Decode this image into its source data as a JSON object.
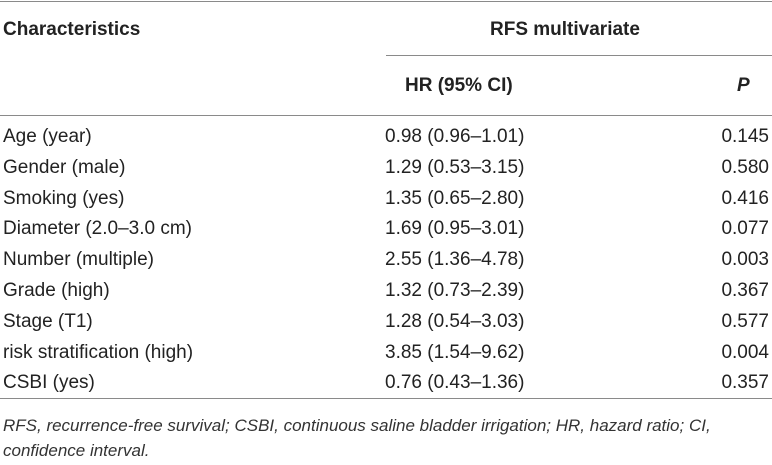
{
  "table": {
    "headers": {
      "characteristics": "Characteristics",
      "group": "RFS multivariate",
      "hr": "HR (95% CI)",
      "p": "P"
    },
    "rows": [
      {
        "characteristic": "Age (year)",
        "hr": "0.98 (0.96–1.01)",
        "p": "0.145"
      },
      {
        "characteristic": "Gender (male)",
        "hr": "1.29 (0.53–3.15)",
        "p": "0.580"
      },
      {
        "characteristic": "Smoking (yes)",
        "hr": "1.35 (0.65–2.80)",
        "p": "0.416"
      },
      {
        "characteristic": "Diameter (2.0–3.0 cm)",
        "hr": "1.69 (0.95–3.01)",
        "p": "0.077"
      },
      {
        "characteristic": "Number (multiple)",
        "hr": "2.55 (1.36–4.78)",
        "p": "0.003"
      },
      {
        "characteristic": "Grade (high)",
        "hr": "1.32 (0.73–2.39)",
        "p": "0.367"
      },
      {
        "characteristic": "Stage (T1)",
        "hr": "1.28 (0.54–3.03)",
        "p": "0.577"
      },
      {
        "characteristic": "risk stratification (high)",
        "hr": "3.85 (1.54–9.62)",
        "p": "0.004"
      },
      {
        "characteristic": "CSBI (yes)",
        "hr": "0.76 (0.43–1.36)",
        "p": "0.357"
      }
    ]
  },
  "footnote": "RFS, recurrence-free survival; CSBI, continuous saline bladder irrigation; HR, hazard ratio; CI, confidence interval."
}
